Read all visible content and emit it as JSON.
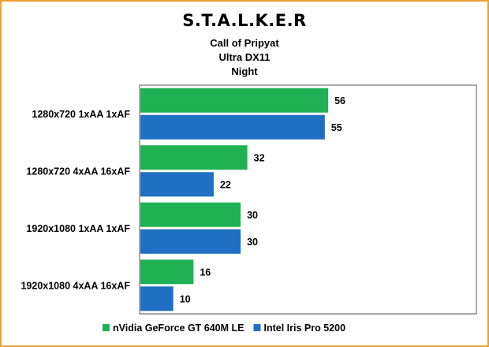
{
  "chart_data": {
    "type": "bar",
    "orientation": "horizontal",
    "title": "S.T.A.L.K.E.R",
    "subtitles": [
      "Call of Pripyat",
      "Ultra DX11",
      "Night"
    ],
    "categories": [
      "1280x720 1xAA 1xAF",
      "1280x720 4xAA 16xAF",
      "1920x1080 1xAA 1xAF",
      "1920x1080 4xAA 16xAF"
    ],
    "series": [
      {
        "name": "nVidia GeForce GT 640M LE",
        "color": "#1fb154",
        "values": [
          56,
          32,
          30,
          16
        ]
      },
      {
        "name": "Intel Iris Pro 5200",
        "color": "#1f6fc3",
        "values": [
          55,
          22,
          30,
          10
        ]
      }
    ],
    "xlim": [
      0,
      100
    ],
    "grid": false,
    "legend_position": "bottom"
  }
}
